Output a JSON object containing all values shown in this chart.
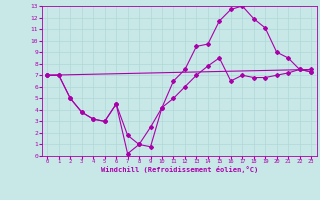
{
  "background_color": "#c8e8e8",
  "grid_color": "#aacccc",
  "line_color": "#aa00aa",
  "xlabel": "Windchill (Refroidissement éolien,°C)",
  "xlim": [
    -0.5,
    23.5
  ],
  "ylim": [
    0,
    13
  ],
  "xticks": [
    0,
    1,
    2,
    3,
    4,
    5,
    6,
    7,
    8,
    9,
    10,
    11,
    12,
    13,
    14,
    15,
    16,
    17,
    18,
    19,
    20,
    21,
    22,
    23
  ],
  "yticks": [
    0,
    1,
    2,
    3,
    4,
    5,
    6,
    7,
    8,
    9,
    10,
    11,
    12,
    13
  ],
  "line1_x": [
    0,
    23
  ],
  "line1_y": [
    7.0,
    7.5
  ],
  "line2_x": [
    0,
    1,
    2,
    3,
    4,
    5,
    6,
    7,
    8,
    9,
    10,
    11,
    12,
    13,
    14,
    15,
    16,
    17,
    18,
    19,
    20,
    21,
    22,
    23
  ],
  "line2_y": [
    7.0,
    7.0,
    5.0,
    3.8,
    3.2,
    3.0,
    4.5,
    0.2,
    1.0,
    2.5,
    4.2,
    6.5,
    7.5,
    9.5,
    9.7,
    11.7,
    12.7,
    13.0,
    11.9,
    11.1,
    9.0,
    8.5,
    7.5,
    7.3
  ],
  "line3_x": [
    0,
    1,
    2,
    3,
    4,
    5,
    6,
    7,
    8,
    9,
    10,
    11,
    12,
    13,
    14,
    15,
    16,
    17,
    18,
    19,
    20,
    21,
    22,
    23
  ],
  "line3_y": [
    7.0,
    7.0,
    5.0,
    3.8,
    3.2,
    3.0,
    4.5,
    1.8,
    1.0,
    0.8,
    4.2,
    5.0,
    6.0,
    7.0,
    7.8,
    8.5,
    6.5,
    7.0,
    6.8,
    6.8,
    7.0,
    7.2,
    7.5,
    7.3
  ]
}
